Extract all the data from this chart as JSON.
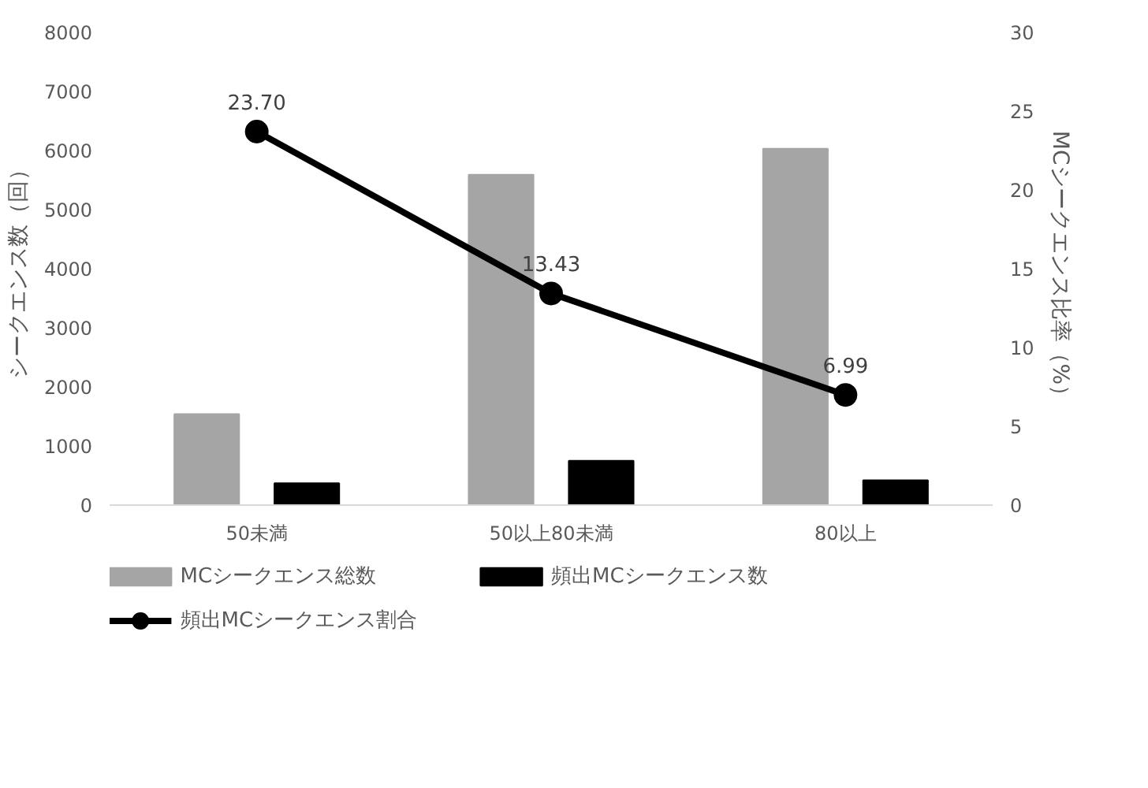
{
  "chart_data": {
    "type": "bar",
    "categories": [
      "50未満",
      "50以上80未満",
      "80以上"
    ],
    "ylabel": "シークエンス数（回）",
    "y2label": "MCシークエンス比率（%）",
    "ylim": [
      0,
      8000
    ],
    "yticks": [
      0,
      1000,
      2000,
      3000,
      4000,
      5000,
      6000,
      7000,
      8000
    ],
    "y2lim": [
      0,
      30
    ],
    "y2ticks": [
      0,
      5,
      10,
      15,
      20,
      25,
      30
    ],
    "grid": false,
    "legend": "bottom",
    "series": [
      {
        "name": "MCシークエンス総数",
        "color": "#a5a5a5",
        "values": [
          1540,
          5590,
          6030
        ]
      },
      {
        "name": "頻出MCシークエンス数",
        "color": "#000000",
        "values": [
          370,
          750,
          420
        ]
      },
      {
        "name": "頻出MCシークエンス割合",
        "type": "line",
        "axis": "y2",
        "color": "#000000",
        "marker": "circle",
        "values": [
          23.7,
          13.43,
          6.99
        ],
        "value_labels": [
          "23.70",
          "13.43",
          "6.99"
        ]
      }
    ]
  }
}
